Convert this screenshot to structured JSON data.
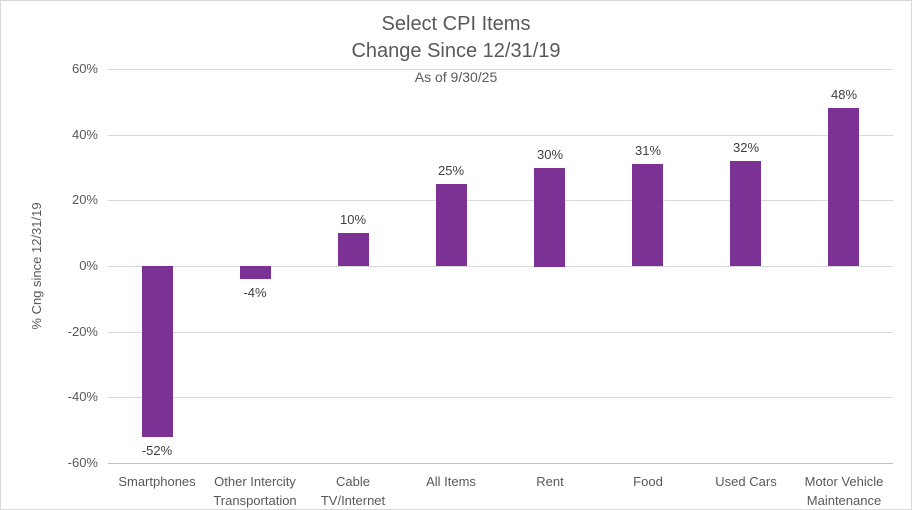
{
  "chart_data": {
    "type": "bar",
    "title": "Select CPI Items",
    "subtitle": "Change Since 12/31/19",
    "as_of": "As of 9/30/25",
    "ylabel": "% Cng since 12/31/19",
    "categories": [
      "Smartphones",
      "Other Intercity Transportation",
      "Cable TV/Internet",
      "All Items",
      "Rent",
      "Food",
      "Used Cars",
      "Motor Vehicle Maintenance"
    ],
    "values": [
      -52,
      -4,
      10,
      25,
      30,
      31,
      32,
      48
    ],
    "data_labels": [
      "-52%",
      "-4%",
      "10%",
      "25%",
      "30%",
      "31%",
      "32%",
      "48%"
    ],
    "yticks": [
      60,
      40,
      20,
      0,
      -20,
      -40,
      -60
    ],
    "ytick_labels": [
      "60%",
      "40%",
      "20%",
      "0%",
      "-20%",
      "-40%",
      "-60%"
    ],
    "ylim": [
      -60,
      60
    ],
    "grid": true,
    "legend": "none",
    "colors": {
      "bar": "#7B3294",
      "grid": "#D9D9D9",
      "text": "#595959",
      "data_label": "#404040",
      "border": "#D9D9D9"
    }
  }
}
